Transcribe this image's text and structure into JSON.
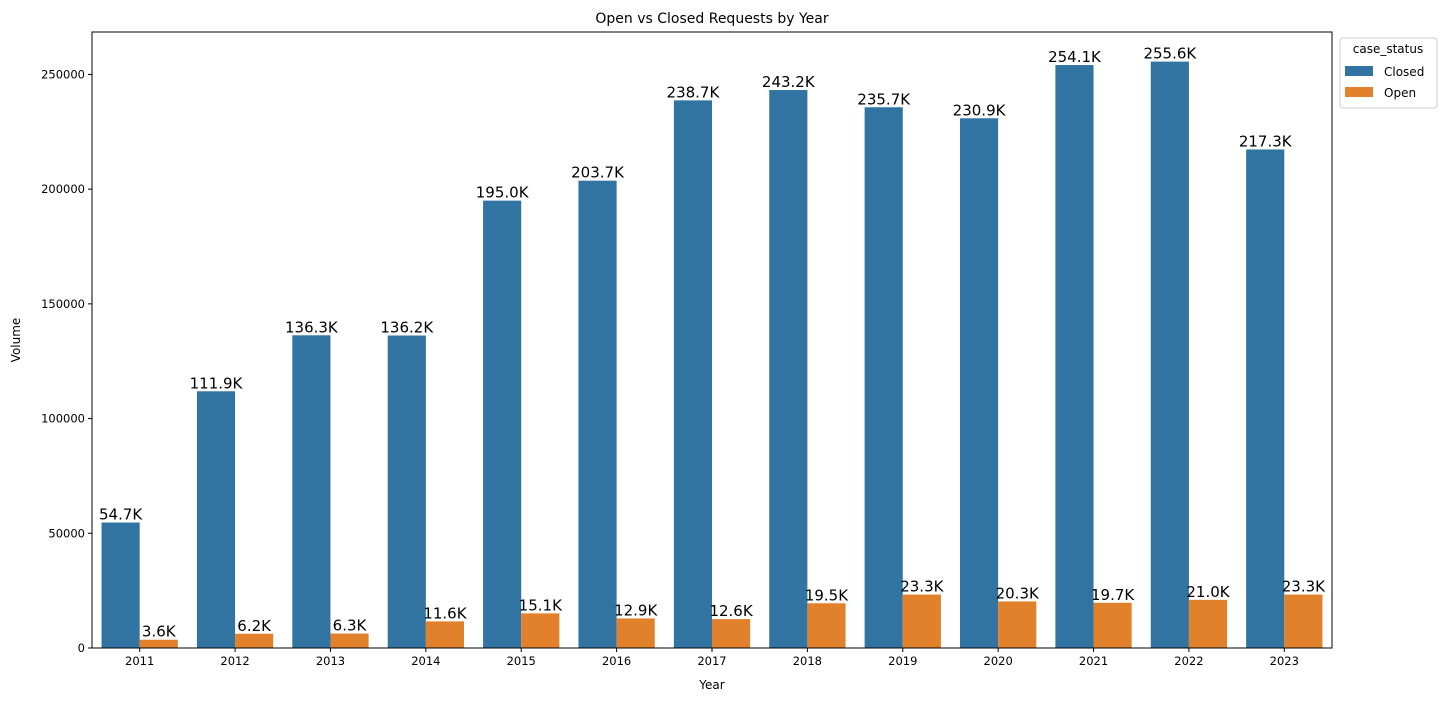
{
  "chart_data": {
    "type": "bar",
    "title": "Open vs Closed Requests by Year",
    "xlabel": "Year",
    "ylabel": "Volume",
    "ylim": [
      0,
      268500
    ],
    "yticks": [
      0,
      50000,
      100000,
      150000,
      200000,
      250000
    ],
    "ytick_labels": [
      "0",
      "50000",
      "100000",
      "150000",
      "200000",
      "250000"
    ],
    "categories": [
      "2011",
      "2012",
      "2013",
      "2014",
      "2015",
      "2016",
      "2017",
      "2018",
      "2019",
      "2020",
      "2021",
      "2022",
      "2023"
    ],
    "legend": {
      "title": "case_status",
      "placement": "upper-right-outside"
    },
    "series": [
      {
        "name": "Closed",
        "color": "#3274a1",
        "values": [
          54700,
          111900,
          136300,
          136200,
          195000,
          203700,
          238700,
          243200,
          235700,
          230900,
          254100,
          255600,
          217300
        ],
        "labels": [
          "54.7K",
          "111.9K",
          "136.3K",
          "136.2K",
          "195.0K",
          "203.7K",
          "238.7K",
          "243.2K",
          "235.7K",
          "230.9K",
          "254.1K",
          "255.6K",
          "217.3K"
        ]
      },
      {
        "name": "Open",
        "color": "#e1812c",
        "values": [
          3600,
          6200,
          6300,
          11600,
          15100,
          12900,
          12600,
          19500,
          23300,
          20300,
          19700,
          21000,
          23300
        ],
        "labels": [
          "3.6K",
          "6.2K",
          "6.3K",
          "11.6K",
          "15.1K",
          "12.9K",
          "12.6K",
          "19.5K",
          "23.3K",
          "20.3K",
          "19.7K",
          "21.0K",
          "23.3K"
        ]
      }
    ]
  }
}
